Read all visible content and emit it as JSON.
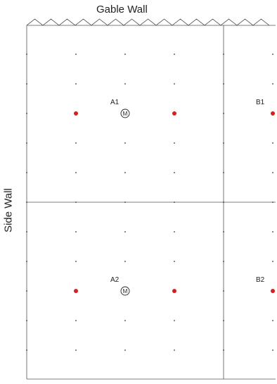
{
  "walls": {
    "gable": "Gable Wall",
    "side": "Side Wall"
  },
  "zones": [
    {
      "id": "A1",
      "label": "A1",
      "monitor": "M"
    },
    {
      "id": "B1",
      "label": "B1"
    },
    {
      "id": "A2",
      "label": "A2",
      "monitor": "M"
    },
    {
      "id": "B2",
      "label": "B2"
    }
  ],
  "colors": {
    "line": "#555555",
    "grid_dot": "#333333",
    "sample_point": "#d42020"
  }
}
